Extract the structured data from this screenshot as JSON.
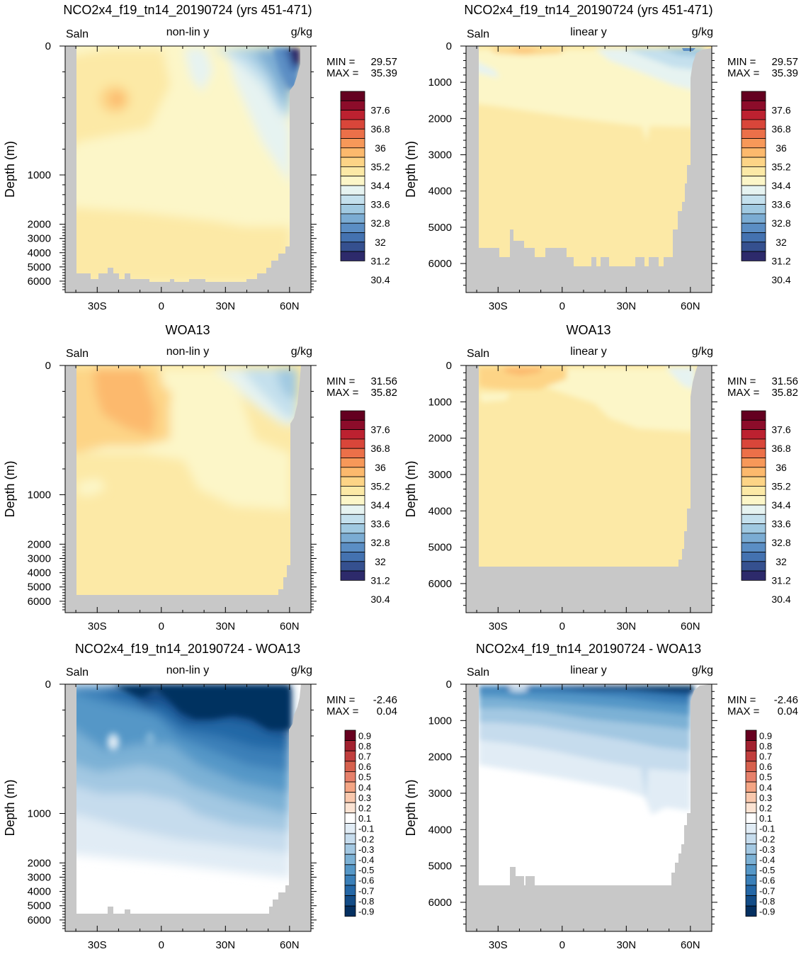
{
  "figure": {
    "variable": "Saln",
    "units": "g/kg",
    "depth_axis_label": "Depth (m)",
    "min_label": "MIN =",
    "max_label": "MAX ="
  },
  "colors": {
    "land": "#c8c8c8",
    "salinity_scale": [
      "#2d2a6b",
      "#35508f",
      "#4472b0",
      "#5b8ec4",
      "#7bacd3",
      "#a0c9e1",
      "#c4e0ed",
      "#e6f3f1",
      "#fcf6c8",
      "#fce9a6",
      "#fdd486",
      "#fcb96d",
      "#f79859",
      "#ec7049",
      "#d9463a",
      "#bc2130",
      "#8c0c2a",
      "#640020"
    ],
    "diff_scale": [
      "#053061",
      "#134c87",
      "#2467a6",
      "#3a7fb8",
      "#5597c7",
      "#7cb1d5",
      "#a3c8e2",
      "#c6dced",
      "#e1ecf5",
      "#ffffff",
      "#fbe3d3",
      "#f9c8ad",
      "#f4a584",
      "#e6806a",
      "#d6604d",
      "#c13e3d",
      "#a2212f",
      "#67001f"
    ]
  },
  "chart_data": [
    {
      "id": "model-nonlin",
      "type": "contour",
      "title": "NCO2x4_f19_tn14_20190724 (yrs 451-471)",
      "left_label": "Saln",
      "center_label": "non-lin y",
      "right_label": "g/kg",
      "xlabel": "",
      "ylabel": "Depth (m)",
      "xlim": [
        -45,
        70
      ],
      "ylim": [
        0,
        6800
      ],
      "y_scale": "non-linear",
      "x_ticks": [
        {
          "v": -30,
          "t": "30S"
        },
        {
          "v": 0,
          "t": "0"
        },
        {
          "v": 30,
          "t": "30N"
        },
        {
          "v": 60,
          "t": "60N"
        }
      ],
      "y_ticks": [
        {
          "v": 0,
          "t": "0"
        },
        {
          "v": 1000,
          "t": "1000"
        },
        {
          "v": 2000,
          "t": "2000"
        },
        {
          "v": 3000,
          "t": "3000"
        },
        {
          "v": 4000,
          "t": "4000"
        },
        {
          "v": 5000,
          "t": "5000"
        },
        {
          "v": 6000,
          "t": "6000"
        }
      ],
      "min": "29.57",
      "max": "35.39",
      "colorbar": "salinity",
      "colorbar_labels": [
        "37.6",
        "36.8",
        "36",
        "35.2",
        "34.4",
        "33.6",
        "32.8",
        "32",
        "31.2",
        "30.4"
      ]
    },
    {
      "id": "model-linear",
      "type": "contour",
      "title": "NCO2x4_f19_tn14_20190724 (yrs 451-471)",
      "left_label": "Saln",
      "center_label": "linear y",
      "right_label": "g/kg",
      "xlabel": "",
      "ylabel": "Depth (m)",
      "xlim": [
        -45,
        70
      ],
      "ylim": [
        0,
        6800
      ],
      "y_scale": "linear",
      "x_ticks": [
        {
          "v": -30,
          "t": "30S"
        },
        {
          "v": 0,
          "t": "0"
        },
        {
          "v": 30,
          "t": "30N"
        },
        {
          "v": 60,
          "t": "60N"
        }
      ],
      "y_ticks": [
        {
          "v": 0,
          "t": "0"
        },
        {
          "v": 1000,
          "t": "1000"
        },
        {
          "v": 2000,
          "t": "2000"
        },
        {
          "v": 3000,
          "t": "3000"
        },
        {
          "v": 4000,
          "t": "4000"
        },
        {
          "v": 5000,
          "t": "5000"
        },
        {
          "v": 6000,
          "t": "6000"
        }
      ],
      "min": "29.57",
      "max": "35.39",
      "colorbar": "salinity",
      "colorbar_labels": [
        "37.6",
        "36.8",
        "36",
        "35.2",
        "34.4",
        "33.6",
        "32.8",
        "32",
        "31.2",
        "30.4"
      ]
    },
    {
      "id": "obs-nonlin",
      "type": "contour",
      "title": "WOA13",
      "left_label": "Saln",
      "center_label": "non-lin y",
      "right_label": "g/kg",
      "xlabel": "",
      "ylabel": "Depth (m)",
      "xlim": [
        -45,
        70
      ],
      "ylim": [
        0,
        6800
      ],
      "y_scale": "non-linear",
      "x_ticks": [
        {
          "v": -30,
          "t": "30S"
        },
        {
          "v": 0,
          "t": "0"
        },
        {
          "v": 30,
          "t": "30N"
        },
        {
          "v": 60,
          "t": "60N"
        }
      ],
      "y_ticks": [
        {
          "v": 0,
          "t": "0"
        },
        {
          "v": 1000,
          "t": "1000"
        },
        {
          "v": 2000,
          "t": "2000"
        },
        {
          "v": 3000,
          "t": "3000"
        },
        {
          "v": 4000,
          "t": "4000"
        },
        {
          "v": 5000,
          "t": "5000"
        },
        {
          "v": 6000,
          "t": "6000"
        }
      ],
      "min": "31.56",
      "max": "35.82",
      "colorbar": "salinity",
      "colorbar_labels": [
        "37.6",
        "36.8",
        "36",
        "35.2",
        "34.4",
        "33.6",
        "32.8",
        "32",
        "31.2",
        "30.4"
      ]
    },
    {
      "id": "obs-linear",
      "type": "contour",
      "title": "WOA13",
      "left_label": "Saln",
      "center_label": "linear y",
      "right_label": "g/kg",
      "xlabel": "",
      "ylabel": "Depth (m)",
      "xlim": [
        -45,
        70
      ],
      "ylim": [
        0,
        6800
      ],
      "y_scale": "linear",
      "x_ticks": [
        {
          "v": -30,
          "t": "30S"
        },
        {
          "v": 0,
          "t": "0"
        },
        {
          "v": 30,
          "t": "30N"
        },
        {
          "v": 60,
          "t": "60N"
        }
      ],
      "y_ticks": [
        {
          "v": 0,
          "t": "0"
        },
        {
          "v": 1000,
          "t": "1000"
        },
        {
          "v": 2000,
          "t": "2000"
        },
        {
          "v": 3000,
          "t": "3000"
        },
        {
          "v": 4000,
          "t": "4000"
        },
        {
          "v": 5000,
          "t": "5000"
        },
        {
          "v": 6000,
          "t": "6000"
        }
      ],
      "min": "31.56",
      "max": "35.82",
      "colorbar": "salinity",
      "colorbar_labels": [
        "37.6",
        "36.8",
        "36",
        "35.2",
        "34.4",
        "33.6",
        "32.8",
        "32",
        "31.2",
        "30.4"
      ]
    },
    {
      "id": "diff-nonlin",
      "type": "contour",
      "title": "NCO2x4_f19_tn14_20190724 - WOA13",
      "left_label": "Saln",
      "center_label": "non-lin y",
      "right_label": "g/kg",
      "xlabel": "",
      "ylabel": "Depth (m)",
      "xlim": [
        -45,
        70
      ],
      "ylim": [
        0,
        6800
      ],
      "y_scale": "non-linear",
      "x_ticks": [
        {
          "v": -30,
          "t": "30S"
        },
        {
          "v": 0,
          "t": "0"
        },
        {
          "v": 30,
          "t": "30N"
        },
        {
          "v": 60,
          "t": "60N"
        }
      ],
      "y_ticks": [
        {
          "v": 0,
          "t": "0"
        },
        {
          "v": 1000,
          "t": "1000"
        },
        {
          "v": 2000,
          "t": "2000"
        },
        {
          "v": 3000,
          "t": "3000"
        },
        {
          "v": 4000,
          "t": "4000"
        },
        {
          "v": 5000,
          "t": "5000"
        },
        {
          "v": 6000,
          "t": "6000"
        }
      ],
      "min": "-2.46",
      "max": "0.04",
      "colorbar": "diff",
      "colorbar_labels": [
        "0.9",
        "0.8",
        "0.7",
        "0.6",
        "0.5",
        "0.4",
        "0.3",
        "0.2",
        "0.1",
        "-0.1",
        "-0.2",
        "-0.3",
        "-0.4",
        "-0.5",
        "-0.6",
        "-0.7",
        "-0.8",
        "-0.9"
      ]
    },
    {
      "id": "diff-linear",
      "type": "contour",
      "title": "NCO2x4_f19_tn14_20190724 - WOA13",
      "left_label": "Saln",
      "center_label": "linear y",
      "right_label": "g/kg",
      "xlabel": "",
      "ylabel": "Depth (m)",
      "xlim": [
        -45,
        70
      ],
      "ylim": [
        0,
        6800
      ],
      "y_scale": "linear",
      "x_ticks": [
        {
          "v": -30,
          "t": "30S"
        },
        {
          "v": 0,
          "t": "0"
        },
        {
          "v": 30,
          "t": "30N"
        },
        {
          "v": 60,
          "t": "60N"
        }
      ],
      "y_ticks": [
        {
          "v": 0,
          "t": "0"
        },
        {
          "v": 1000,
          "t": "1000"
        },
        {
          "v": 2000,
          "t": "2000"
        },
        {
          "v": 3000,
          "t": "3000"
        },
        {
          "v": 4000,
          "t": "4000"
        },
        {
          "v": 5000,
          "t": "5000"
        },
        {
          "v": 6000,
          "t": "6000"
        }
      ],
      "min": "-2.46",
      "max": "0.04",
      "colorbar": "diff",
      "colorbar_labels": [
        "0.9",
        "0.8",
        "0.7",
        "0.6",
        "0.5",
        "0.4",
        "0.3",
        "0.2",
        "0.1",
        "-0.1",
        "-0.2",
        "-0.3",
        "-0.4",
        "-0.5",
        "-0.6",
        "-0.7",
        "-0.8",
        "-0.9"
      ]
    }
  ]
}
